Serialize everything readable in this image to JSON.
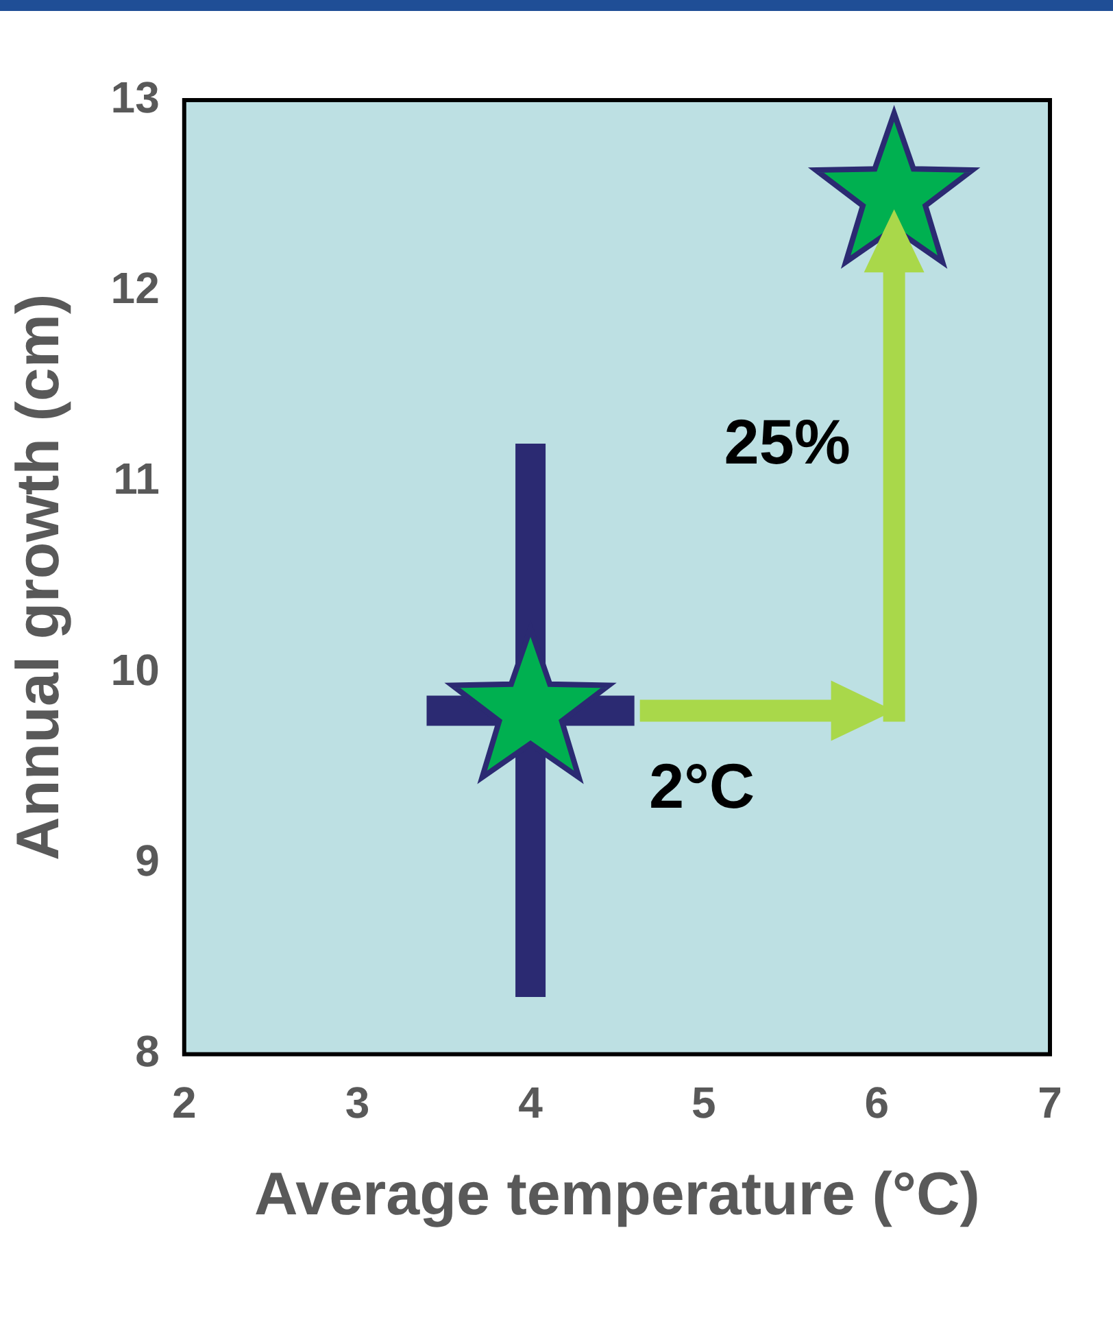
{
  "chart_data": {
    "type": "scatter",
    "xlabel": "Average temperature (°C)",
    "ylabel": "Annual growth (cm)",
    "xlim": [
      2,
      7
    ],
    "xticks": [
      2,
      3,
      4,
      5,
      6,
      7
    ],
    "ylim": [
      8,
      13
    ],
    "yticks": [
      8,
      9,
      10,
      11,
      12,
      13
    ],
    "series": [
      {
        "color": "#00b050",
        "x": [
          4,
          6.1
        ],
        "values": [
          9.8,
          12.5
        ],
        "errors": [
          [
            8.3,
            11.2
          ],
          null
        ],
        "xerrors": [
          [
            3.4,
            4.6
          ],
          null
        ]
      }
    ],
    "annotations": [
      "2°C",
      "25%"
    ],
    "marker": "star",
    "grid": false,
    "legend": false
  }
}
